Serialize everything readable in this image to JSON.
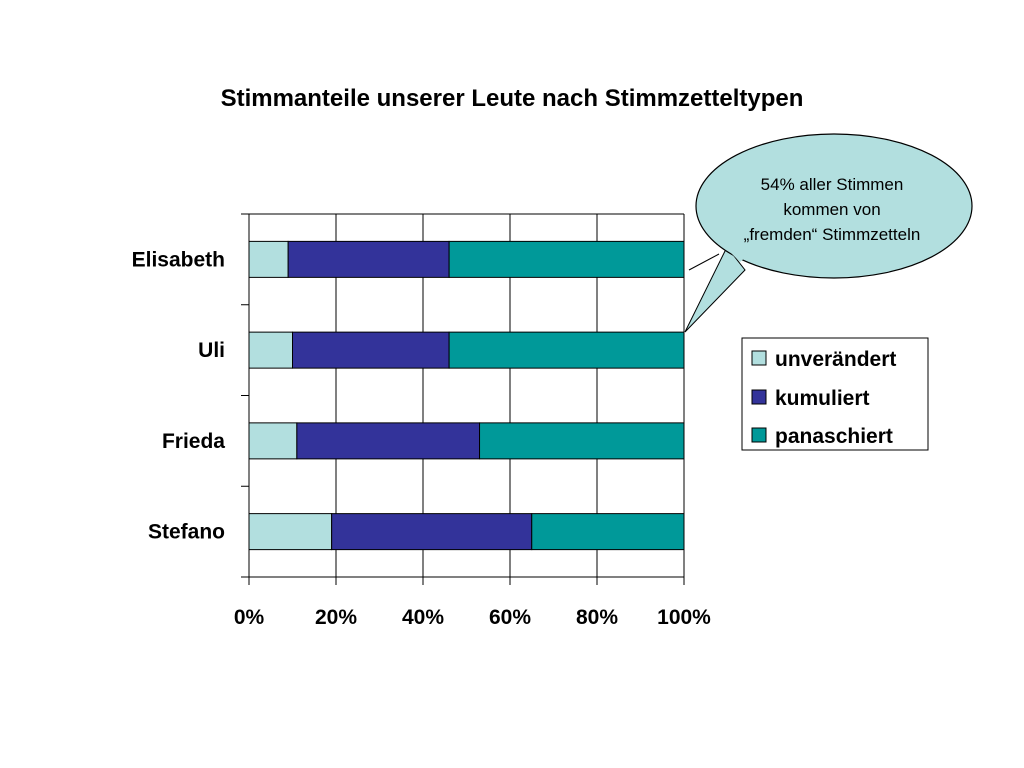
{
  "chart_data": {
    "type": "bar",
    "orientation": "horizontal",
    "stacking": "percent",
    "title": "Stimmanteile unserer Leute nach Stimmzetteltypen",
    "categories": [
      "Elisabeth",
      "Uli",
      "Frieda",
      "Stefano"
    ],
    "series": [
      {
        "name": "unverändert",
        "values": [
          9,
          10,
          11,
          19
        ],
        "color": "#b2dfdf"
      },
      {
        "name": "kumuliert",
        "values": [
          37,
          36,
          42,
          46
        ],
        "color": "#33339a"
      },
      {
        "name": "panaschiert",
        "values": [
          54,
          54,
          47,
          35
        ],
        "color": "#009999"
      }
    ],
    "x_ticks": [
      "0%",
      "20%",
      "40%",
      "60%",
      "80%",
      "100%"
    ],
    "xlim": [
      0,
      100
    ],
    "grid": true,
    "legend_position": "right",
    "annotation": {
      "lines": [
        "54% aller Stimmen",
        "kommen von",
        "„fremden“ Stimmzetteln"
      ]
    }
  }
}
